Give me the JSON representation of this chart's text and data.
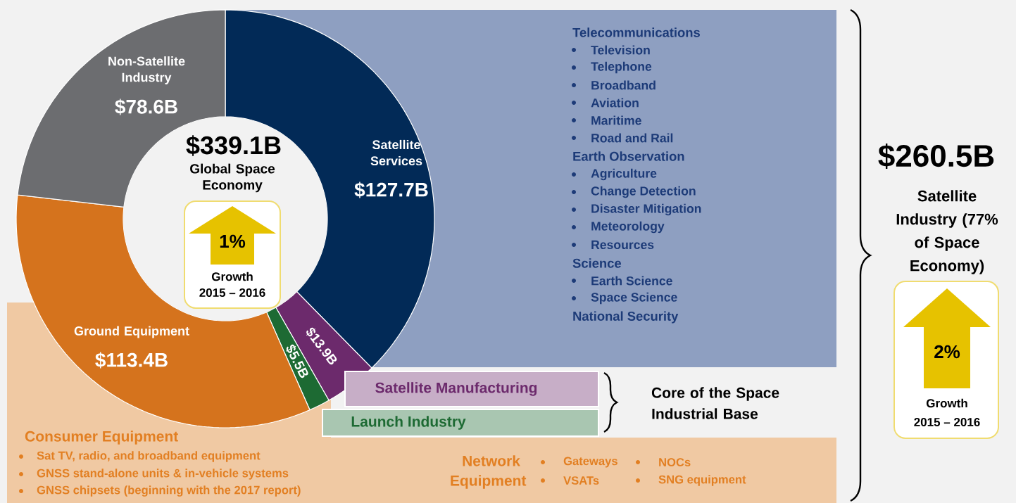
{
  "chart_data": {
    "type": "donut",
    "title": "$339.1B",
    "subtitle": "Global Space Economy",
    "categories": [
      "Satellite Services",
      "Satellite Manufacturing",
      "Launch Industry",
      "Ground Equipment",
      "Non-Satellite Industry"
    ],
    "values": [
      127.7,
      13.9,
      5.5,
      113.4,
      78.6
    ],
    "colors": [
      "#022a57",
      "#6c2a6c",
      "#1d6a33",
      "#d5731d",
      "#6c6d70"
    ],
    "value_labels": [
      "$127.7B",
      "$13.9B",
      "$5.5B",
      "$113.4B",
      "$78.6B"
    ],
    "annotations": [
      "1%",
      "Growth",
      "2015 – 2016",
      "$260.5B",
      "Satellite Industry (77% of Space Economy)",
      "2%",
      "Growth",
      "2015 – 2016",
      "Core of the Space Industrial Base",
      "Telecommunications",
      "Television",
      "Telephone",
      "Broadband",
      "Aviation",
      "Maritime",
      "Road and Rail",
      "Earth Observation",
      "Agriculture",
      "Change Detection",
      "Disaster Mitigation",
      "Meteorology",
      "Resources",
      "Science",
      "Earth Science",
      "Space Science",
      "National Security",
      "Consumer Equipment",
      "Sat TV, radio, and broadband equipment",
      "GNSS stand-alone units & in-vehicle systems",
      "GNSS chipsets (beginning with the 2017 report)",
      "Network Equipment",
      "Gateways",
      "VSATs",
      "NOCs",
      "SNG equipment"
    ]
  }
}
